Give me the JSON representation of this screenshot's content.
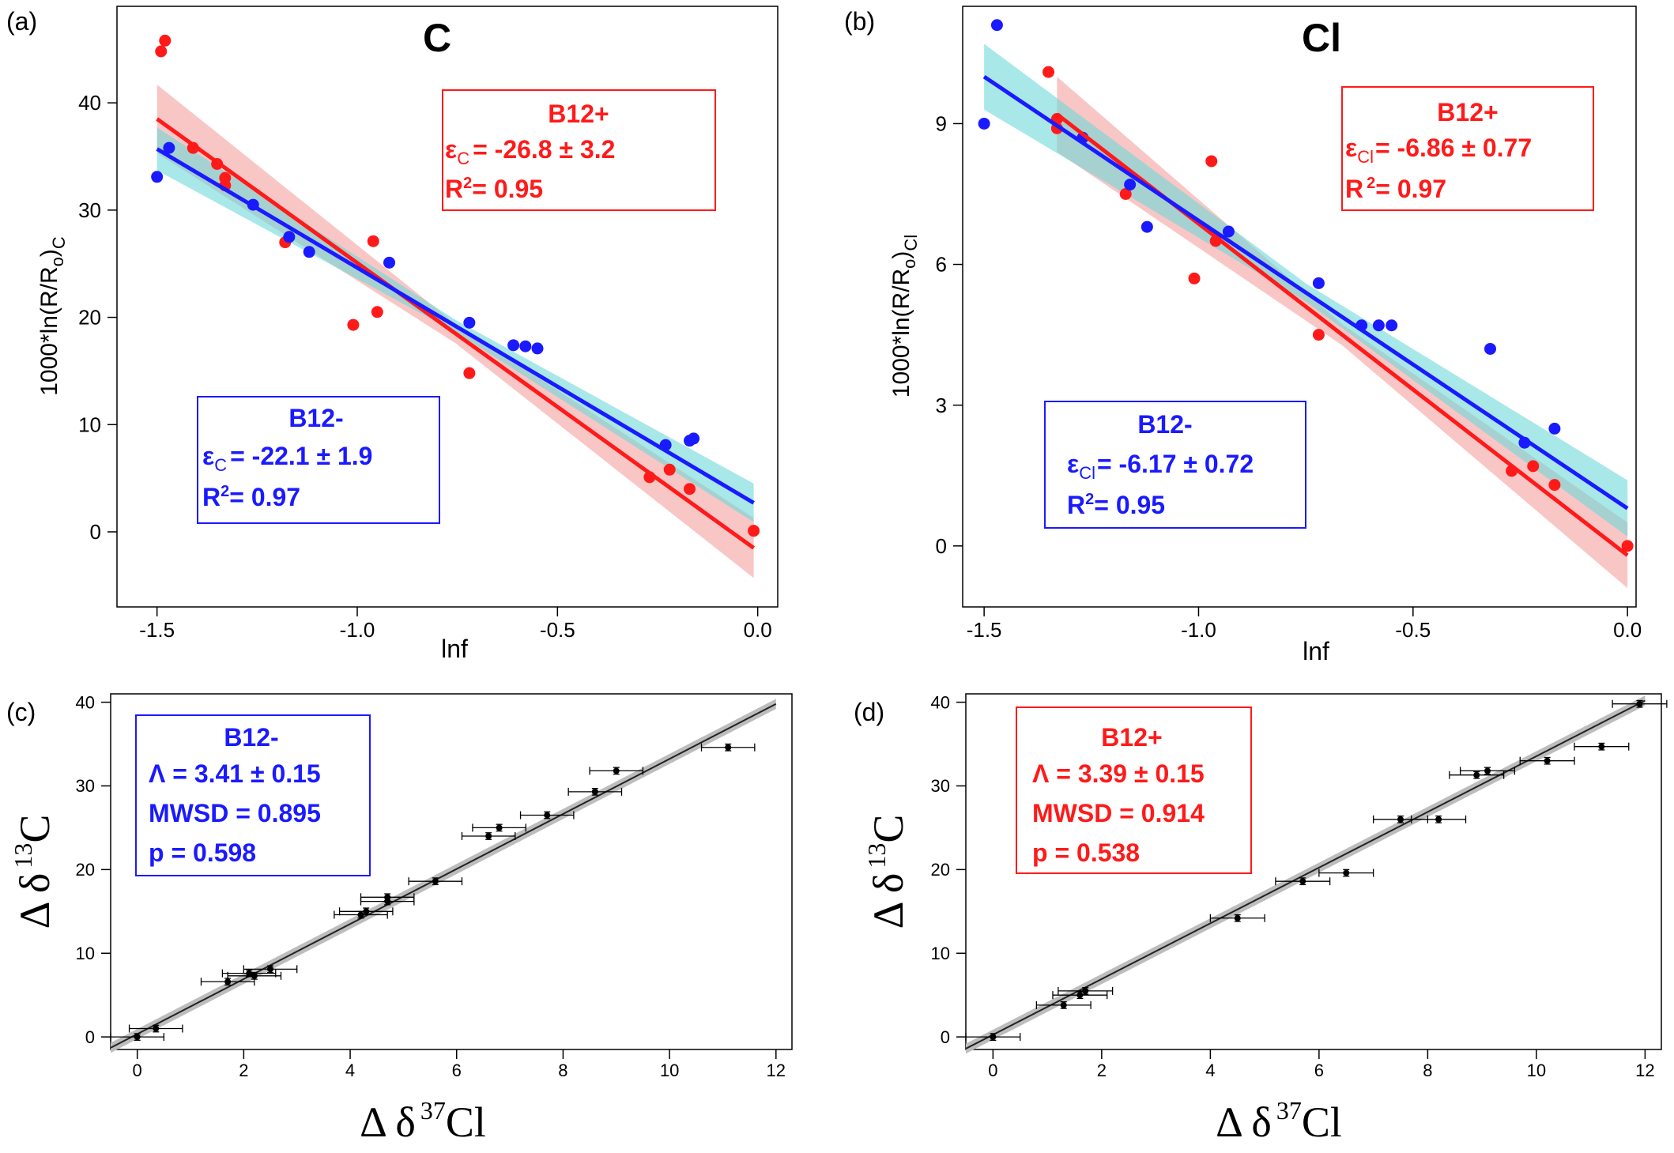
{
  "chart_data": [
    {
      "id": "a",
      "panel_label": "(a)",
      "type": "scatter",
      "title": "C",
      "xlabel": "lnf",
      "ylabel_main": "1000*ln(R/R",
      "ylabel_sub_o": "o",
      "ylabel_close": ")",
      "ylabel_sub": "C",
      "xlim": [
        -1.6,
        0.05
      ],
      "ylim": [
        -7,
        49
      ],
      "xticks": [
        {
          "v": -1.5,
          "label": "-1.5"
        },
        {
          "v": -1.0,
          "label": "-1.0"
        },
        {
          "v": -0.5,
          "label": "-0.5"
        },
        {
          "v": 0.0,
          "label": "0.0"
        }
      ],
      "yticks": [
        {
          "v": 0,
          "label": "0"
        },
        {
          "v": 10,
          "label": "10"
        },
        {
          "v": 20,
          "label": "20"
        },
        {
          "v": 30,
          "label": "30"
        },
        {
          "v": 40,
          "label": "40"
        }
      ],
      "series": [
        {
          "name": "B12+",
          "color": "#ff1a1a",
          "band_color": "#f5a0a0",
          "fit": {
            "x": [
              -1.5,
              -0.01
            ],
            "y": [
              38.5,
              -1.5
            ],
            "ci": [
              3.2,
              2.8
            ]
          },
          "points": [
            {
              "x": -1.48,
              "y": 45.8
            },
            {
              "x": -1.49,
              "y": 44.8
            },
            {
              "x": -1.41,
              "y": 35.8
            },
            {
              "x": -1.35,
              "y": 34.3
            },
            {
              "x": -1.33,
              "y": 33.0
            },
            {
              "x": -1.33,
              "y": 32.3
            },
            {
              "x": -1.18,
              "y": 27.0
            },
            {
              "x": -0.96,
              "y": 27.1
            },
            {
              "x": -1.01,
              "y": 19.3
            },
            {
              "x": -0.95,
              "y": 20.5
            },
            {
              "x": -0.72,
              "y": 14.8
            },
            {
              "x": -0.27,
              "y": 5.1
            },
            {
              "x": -0.22,
              "y": 5.8
            },
            {
              "x": -0.17,
              "y": 4.0
            },
            {
              "x": -0.01,
              "y": 0.1
            }
          ]
        },
        {
          "name": "B12-",
          "color": "#1a1aff",
          "band_color": "#6ed8d8",
          "fit": {
            "x": [
              -1.5,
              -0.01
            ],
            "y": [
              35.7,
              2.7
            ],
            "ci": [
              2.0,
              1.8
            ]
          },
          "points": [
            {
              "x": -1.5,
              "y": 33.1
            },
            {
              "x": -1.47,
              "y": 35.8
            },
            {
              "x": -1.26,
              "y": 30.5
            },
            {
              "x": -1.17,
              "y": 27.5
            },
            {
              "x": -1.12,
              "y": 26.1
            },
            {
              "x": -0.92,
              "y": 25.1
            },
            {
              "x": -0.72,
              "y": 19.5
            },
            {
              "x": -0.61,
              "y": 17.4
            },
            {
              "x": -0.58,
              "y": 17.3
            },
            {
              "x": -0.55,
              "y": 17.1
            },
            {
              "x": -0.23,
              "y": 8.1
            },
            {
              "x": -0.17,
              "y": 8.5
            },
            {
              "x": -0.16,
              "y": 8.7
            }
          ]
        }
      ],
      "annotations": [
        {
          "box_color": "#ff1a1a",
          "title": "B12+",
          "eps_sym": "ε",
          "eps_sub": "C",
          "eps_val": "= -26.8 ± 3.2",
          "r2_a": "R",
          "r2_sup": "2",
          "r2_b": "= 0.95"
        },
        {
          "box_color": "#1a1aff",
          "title": "B12-",
          "eps_sym": "ε",
          "eps_sub": "C",
          "eps_val": "= -22.1 ± 1.9",
          "r2_a": "R",
          "r2_sup": "2",
          "r2_b": "= 0.97"
        }
      ]
    },
    {
      "id": "b",
      "panel_label": "(b)",
      "type": "scatter",
      "title": "Cl",
      "xlabel": "lnf",
      "ylabel_main": "1000*ln(R/R",
      "ylabel_sub_o": "o",
      "ylabel_close": ")",
      "ylabel_sub": "Cl",
      "xlim": [
        -1.55,
        0.02
      ],
      "ylim": [
        -1.3,
        11.5
      ],
      "xticks": [
        {
          "v": -1.5,
          "label": "-1.5"
        },
        {
          "v": -1.0,
          "label": "-1.0"
        },
        {
          "v": -0.5,
          "label": "-0.5"
        },
        {
          "v": 0.0,
          "label": "0.0"
        }
      ],
      "yticks": [
        {
          "v": 0,
          "label": "0"
        },
        {
          "v": 3,
          "label": "3"
        },
        {
          "v": 6,
          "label": "6"
        },
        {
          "v": 9,
          "label": "9"
        }
      ],
      "series": [
        {
          "name": "B12+",
          "color": "#ff1a1a",
          "band_color": "#f5a0a0",
          "fit": {
            "x": [
              -1.33,
              0.0
            ],
            "y": [
              9.2,
              -0.2
            ],
            "ci": [
              0.8,
              0.7
            ]
          },
          "points": [
            {
              "x": -1.35,
              "y": 10.1
            },
            {
              "x": -1.33,
              "y": 9.1
            },
            {
              "x": -1.33,
              "y": 8.9
            },
            {
              "x": -1.17,
              "y": 7.5
            },
            {
              "x": -0.97,
              "y": 8.2
            },
            {
              "x": -0.96,
              "y": 6.5
            },
            {
              "x": -1.01,
              "y": 5.7
            },
            {
              "x": -0.72,
              "y": 4.5
            },
            {
              "x": -0.27,
              "y": 1.6
            },
            {
              "x": -0.22,
              "y": 1.7
            },
            {
              "x": -0.17,
              "y": 1.3
            },
            {
              "x": 0.0,
              "y": 0.0
            }
          ]
        },
        {
          "name": "B12-",
          "color": "#1a1aff",
          "band_color": "#6ed8d8",
          "fit": {
            "x": [
              -1.5,
              0.0
            ],
            "y": [
              10.0,
              0.8
            ],
            "ci": [
              0.7,
              0.6
            ]
          },
          "points": [
            {
              "x": -1.47,
              "y": 11.1
            },
            {
              "x": -1.5,
              "y": 9.0
            },
            {
              "x": -1.27,
              "y": 8.7
            },
            {
              "x": -1.16,
              "y": 7.7
            },
            {
              "x": -1.12,
              "y": 6.8
            },
            {
              "x": -0.93,
              "y": 6.7
            },
            {
              "x": -0.72,
              "y": 5.6
            },
            {
              "x": -0.62,
              "y": 4.7
            },
            {
              "x": -0.58,
              "y": 4.7
            },
            {
              "x": -0.55,
              "y": 4.7
            },
            {
              "x": -0.32,
              "y": 4.2
            },
            {
              "x": -0.24,
              "y": 2.2
            },
            {
              "x": -0.17,
              "y": 2.5
            }
          ]
        }
      ],
      "annotations": [
        {
          "box_color": "#ff1a1a",
          "title": "B12+",
          "eps_sym": "ε",
          "eps_sub": "Cl",
          "eps_val": "= -6.86 ± 0.77",
          "r2_a": "R",
          "r2_sup": "2",
          "r2_b": "= 0.97"
        },
        {
          "box_color": "#1a1aff",
          "title": "B12-",
          "eps_sym": "ε",
          "eps_sub": "Cl",
          "eps_val": "= -6.17 ± 0.72",
          "r2_a": "R",
          "r2_sup": "2",
          "r2_b": "= 0.95"
        }
      ]
    },
    {
      "id": "c",
      "panel_label": "(c)",
      "type": "scatter",
      "xlabel_a": "Δ δ",
      "xlabel_sup": "37",
      "xlabel_b": "Cl",
      "ylabel_a": "Δ δ",
      "ylabel_sup": "13",
      "ylabel_b": "C",
      "xlim": [
        -0.5,
        12.3
      ],
      "ylim": [
        -1.5,
        41
      ],
      "xticks": [
        {
          "v": 0,
          "label": "0"
        },
        {
          "v": 2,
          "label": "2"
        },
        {
          "v": 4,
          "label": "4"
        },
        {
          "v": 6,
          "label": "6"
        },
        {
          "v": 8,
          "label": "8"
        },
        {
          "v": 10,
          "label": "10"
        },
        {
          "v": 12,
          "label": "12"
        }
      ],
      "yticks": [
        {
          "v": 0,
          "label": "0"
        },
        {
          "v": 10,
          "label": "10"
        },
        {
          "v": 20,
          "label": "20"
        },
        {
          "v": 30,
          "label": "30"
        },
        {
          "v": 40,
          "label": "40"
        }
      ],
      "fit": {
        "x": [
          -0.5,
          12.0
        ],
        "y": [
          -1.3,
          39.8
        ]
      },
      "points": [
        {
          "x": 0.0,
          "y": 0.0,
          "xerr": 0.5,
          "yerr": 0.4
        },
        {
          "x": 0.35,
          "y": 1.0,
          "xerr": 0.5,
          "yerr": 0.4
        },
        {
          "x": 1.7,
          "y": 6.6,
          "xerr": 0.5,
          "yerr": 0.4
        },
        {
          "x": 2.1,
          "y": 7.6,
          "xerr": 0.5,
          "yerr": 0.4
        },
        {
          "x": 2.2,
          "y": 7.3,
          "xerr": 0.5,
          "yerr": 0.4
        },
        {
          "x": 2.5,
          "y": 8.1,
          "xerr": 0.5,
          "yerr": 0.4
        },
        {
          "x": 4.2,
          "y": 14.6,
          "xerr": 0.5,
          "yerr": 0.4
        },
        {
          "x": 4.3,
          "y": 15.0,
          "xerr": 0.5,
          "yerr": 0.4
        },
        {
          "x": 4.7,
          "y": 16.2,
          "xerr": 0.5,
          "yerr": 0.4
        },
        {
          "x": 4.7,
          "y": 16.7,
          "xerr": 0.5,
          "yerr": 0.4
        },
        {
          "x": 5.6,
          "y": 18.6,
          "xerr": 0.5,
          "yerr": 0.4
        },
        {
          "x": 6.6,
          "y": 24.0,
          "xerr": 0.5,
          "yerr": 0.4
        },
        {
          "x": 6.8,
          "y": 25.0,
          "xerr": 0.5,
          "yerr": 0.4
        },
        {
          "x": 7.7,
          "y": 26.5,
          "xerr": 0.5,
          "yerr": 0.4
        },
        {
          "x": 8.6,
          "y": 29.3,
          "xerr": 0.5,
          "yerr": 0.4
        },
        {
          "x": 9.0,
          "y": 31.8,
          "xerr": 0.5,
          "yerr": 0.4
        },
        {
          "x": 11.1,
          "y": 34.6,
          "xerr": 0.5,
          "yerr": 0.4
        }
      ],
      "annotation": {
        "box_color": "#1a1aff",
        "title": "B12-",
        "lines": [
          "Λ = 3.41 ± 0.15",
          "MWSD = 0.895",
          "p = 0.598"
        ]
      }
    },
    {
      "id": "d",
      "panel_label": "(d)",
      "type": "scatter",
      "xlabel_a": "Δ δ",
      "xlabel_sup": "37",
      "xlabel_b": "Cl",
      "ylabel_a": "Δ δ",
      "ylabel_sup": "13",
      "ylabel_b": "C",
      "xlim": [
        -0.5,
        12.3
      ],
      "ylim": [
        -1.5,
        41
      ],
      "xticks": [
        {
          "v": 0,
          "label": "0"
        },
        {
          "v": 2,
          "label": "2"
        },
        {
          "v": 4,
          "label": "4"
        },
        {
          "v": 6,
          "label": "6"
        },
        {
          "v": 8,
          "label": "8"
        },
        {
          "v": 10,
          "label": "10"
        },
        {
          "v": 12,
          "label": "12"
        }
      ],
      "yticks": [
        {
          "v": 0,
          "label": "0"
        },
        {
          "v": 10,
          "label": "10"
        },
        {
          "v": 20,
          "label": "20"
        },
        {
          "v": 30,
          "label": "30"
        },
        {
          "v": 40,
          "label": "40"
        }
      ],
      "fit": {
        "x": [
          -0.5,
          12.0
        ],
        "y": [
          -1.4,
          40.2
        ]
      },
      "points": [
        {
          "x": 0.0,
          "y": 0.0,
          "xerr": 0.5,
          "yerr": 0.4
        },
        {
          "x": 1.3,
          "y": 3.8,
          "xerr": 0.5,
          "yerr": 0.4
        },
        {
          "x": 1.6,
          "y": 5.0,
          "xerr": 0.5,
          "yerr": 0.4
        },
        {
          "x": 1.7,
          "y": 5.5,
          "xerr": 0.5,
          "yerr": 0.4
        },
        {
          "x": 4.5,
          "y": 14.2,
          "xerr": 0.5,
          "yerr": 0.4
        },
        {
          "x": 5.7,
          "y": 18.6,
          "xerr": 0.5,
          "yerr": 0.4
        },
        {
          "x": 6.5,
          "y": 19.6,
          "xerr": 0.5,
          "yerr": 0.4
        },
        {
          "x": 7.5,
          "y": 26.0,
          "xerr": 0.5,
          "yerr": 0.4
        },
        {
          "x": 8.2,
          "y": 26.0,
          "xerr": 0.5,
          "yerr": 0.4
        },
        {
          "x": 8.9,
          "y": 31.3,
          "xerr": 0.5,
          "yerr": 0.4
        },
        {
          "x": 9.1,
          "y": 31.8,
          "xerr": 0.5,
          "yerr": 0.4
        },
        {
          "x": 10.2,
          "y": 33.0,
          "xerr": 0.5,
          "yerr": 0.4
        },
        {
          "x": 11.2,
          "y": 34.7,
          "xerr": 0.5,
          "yerr": 0.4
        },
        {
          "x": 11.9,
          "y": 39.8,
          "xerr": 0.5,
          "yerr": 0.4
        }
      ],
      "annotation": {
        "box_color": "#ff1a1a",
        "title": "B12+",
        "lines": [
          "Λ = 3.39 ± 0.15",
          "MWSD = 0.914",
          "p = 0.538"
        ]
      }
    }
  ]
}
